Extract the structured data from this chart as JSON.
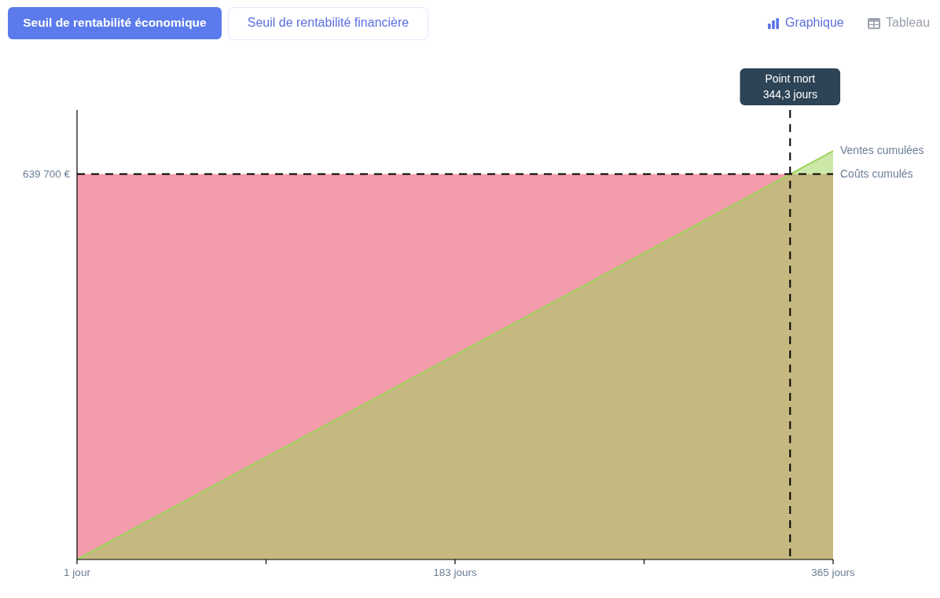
{
  "chart_data": {
    "type": "area",
    "annotations": [
      "Seuil de rentabilité économique",
      "Seuil de rentabilité financière",
      "Graphique",
      "Tableau"
    ],
    "x": [
      1,
      365
    ],
    "xlim": [
      1,
      365
    ],
    "xticks": [
      {
        "value": 1,
        "label": "1 jour"
      },
      {
        "value": 92,
        "label": null
      },
      {
        "value": 183,
        "label": "183 jours"
      },
      {
        "value": 274,
        "label": null
      },
      {
        "value": 365,
        "label": "365 jours"
      }
    ],
    "ylim": [
      0,
      746000
    ],
    "yticks": [
      {
        "value": 639700,
        "label": "639 700 €"
      }
    ],
    "series": [
      {
        "name": "Coûts cumulés",
        "color": "#e8415f",
        "values": [
          639700,
          639700
        ]
      },
      {
        "name": "Ventes cumulées",
        "color": "#9ed35a",
        "values": [
          0,
          678000
        ]
      }
    ],
    "ref_lines": [
      {
        "axis": "y",
        "value": 639700,
        "color": "#000000",
        "line_style": "dashed"
      },
      {
        "axis": "x",
        "value": 344.3,
        "label": "Point mort\n344,3 jours",
        "color": "#000000",
        "line_style": "dashed"
      }
    ]
  }
}
